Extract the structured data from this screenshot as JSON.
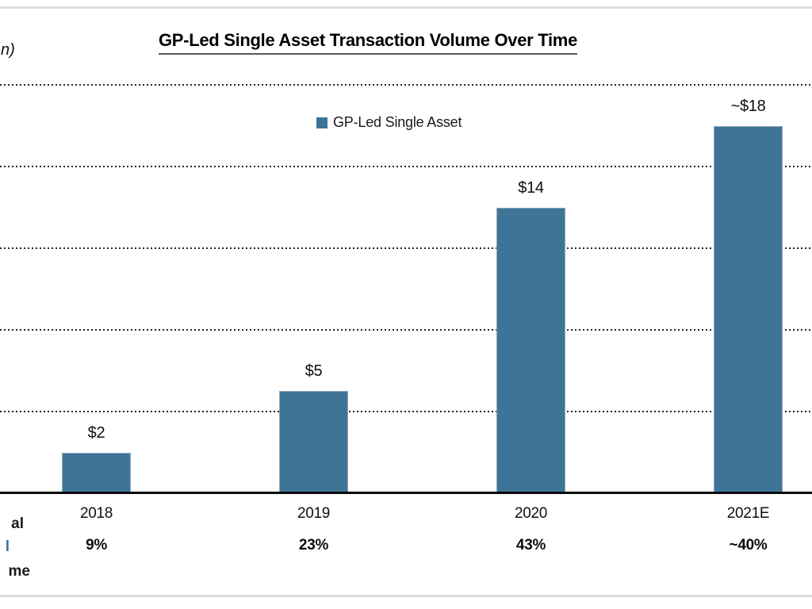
{
  "page": {
    "top_left_unit_fragment": "n)",
    "left_caption_fragments": [
      {
        "text": "al",
        "color": "#1a1a1a"
      },
      {
        "text": "l",
        "color": "#3E7497"
      },
      {
        "text": "me",
        "color": "#1a1a1a"
      }
    ]
  },
  "chart_data": {
    "type": "bar",
    "title": "GP-Led Single Asset Transaction Volume Over Time",
    "legend": [
      {
        "label": "GP-Led Single Asset",
        "color": "#3E7497"
      }
    ],
    "legend_position": "top-center",
    "categories": [
      "2018",
      "2019",
      "2020",
      "2021E"
    ],
    "series": [
      {
        "name": "GP-Led Single Asset",
        "values": [
          2,
          5,
          14,
          18
        ],
        "value_labels": [
          "$2",
          "$5",
          "$14",
          "~$18"
        ],
        "color": "#3E7497"
      }
    ],
    "secondary_row": {
      "description": "share of total GP-led volume",
      "values": [
        "9%",
        "23%",
        "43%",
        "~40%"
      ]
    },
    "ylim": [
      0,
      20
    ],
    "grid_step": 4,
    "grid": "dotted-horizontal",
    "colors": {
      "bar": "#3E7497",
      "axis": "#0a0a0a",
      "gridline": "#262626",
      "frame_rule": "#dcdcdc",
      "title_underline": "#595959"
    }
  }
}
